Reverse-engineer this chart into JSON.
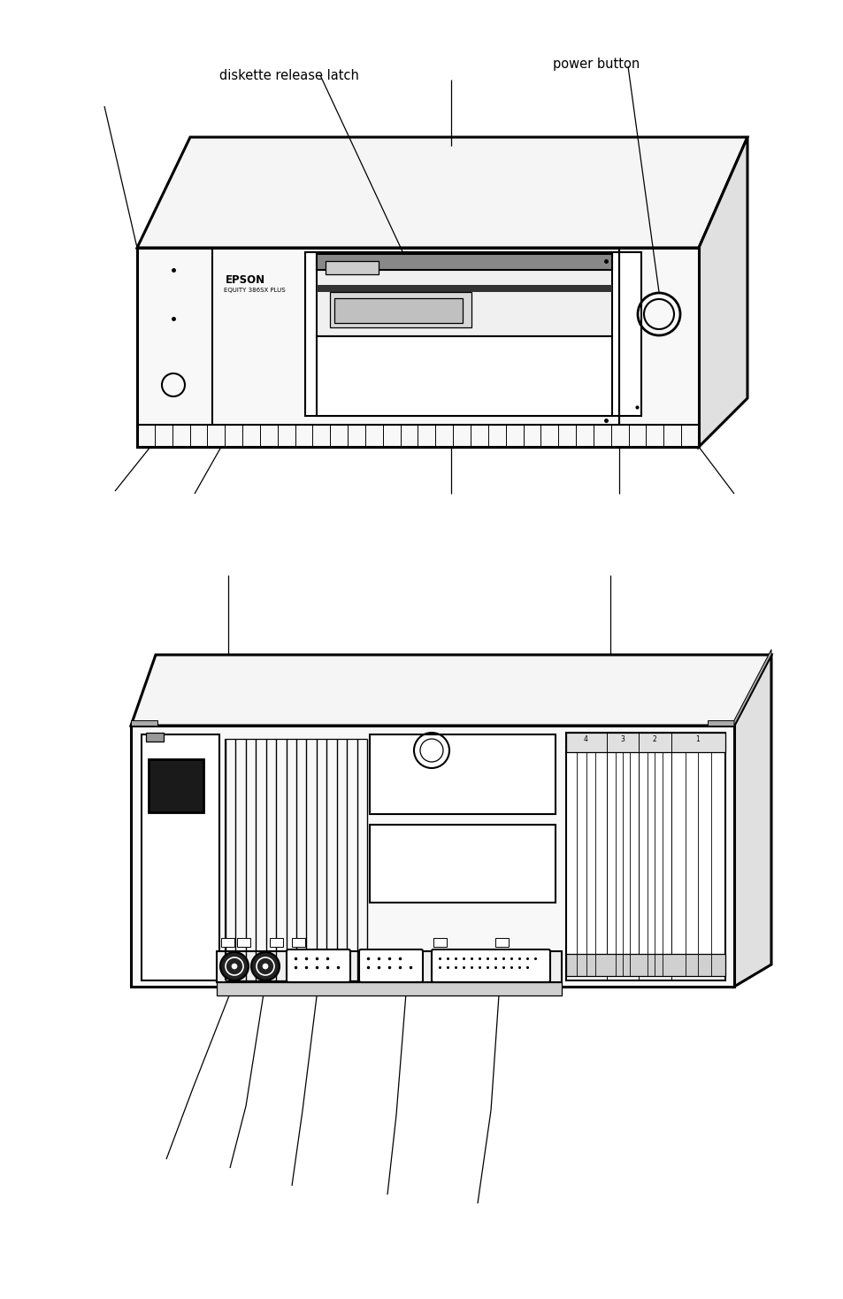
{
  "bg_color": "#ffffff",
  "line_color": "#000000",
  "fig_width": 9.54,
  "fig_height": 14.68,
  "label_diskette_release": "diskette release latch",
  "label_power_button": "power button",
  "label_epson": "EPSON",
  "label_model": "EQUITY 386SX PLUS"
}
